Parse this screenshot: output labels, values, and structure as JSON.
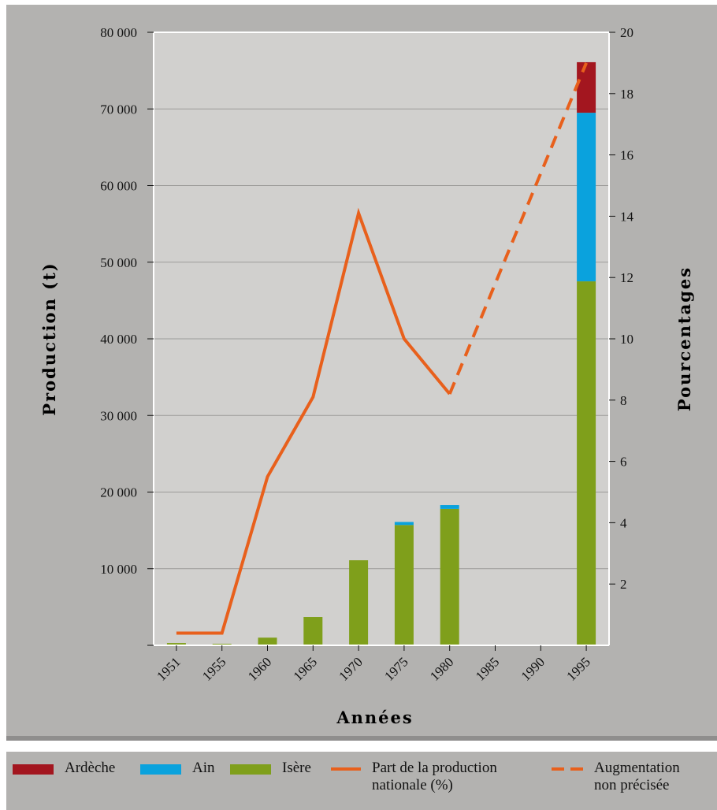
{
  "chart_data": {
    "type": "bar",
    "stacked": true,
    "xlabel": "Années",
    "ylabel": "Production (t)",
    "y2label": "Pourcentages",
    "ylim": [
      0,
      80000
    ],
    "y2lim": [
      0,
      20
    ],
    "yticks": [
      "10 000",
      "20 000",
      "30 000",
      "40 000",
      "50 000",
      "60 000",
      "70 000",
      "80 000"
    ],
    "y2ticks": [
      "2",
      "4",
      "6",
      "8",
      "10",
      "12",
      "14",
      "16",
      "18",
      "20"
    ],
    "categories": [
      "1951",
      "1955",
      "1960",
      "1965",
      "1970",
      "1975",
      "1980",
      "1985",
      "1990",
      "1995"
    ],
    "grid": true,
    "legend_position": "bottom",
    "series": [
      {
        "name": "Isère",
        "color": "#7f9f1b",
        "axis": "left",
        "values": [
          300,
          200,
          1000,
          3700,
          11100,
          15700,
          17800,
          0,
          0,
          47500
        ]
      },
      {
        "name": "Ain",
        "color": "#0aa2dd",
        "axis": "left",
        "values": [
          0,
          0,
          0,
          0,
          0,
          400,
          500,
          0,
          0,
          22000
        ]
      },
      {
        "name": "Ardèche",
        "color": "#a3161f",
        "axis": "left",
        "values": [
          0,
          0,
          0,
          0,
          0,
          0,
          0,
          0,
          0,
          6600
        ]
      }
    ],
    "lines": [
      {
        "name": "Part de la production nationale (%)",
        "color": "#e8601c",
        "style": "solid",
        "axis": "right",
        "x": [
          "1951",
          "1955",
          "1960",
          "1965",
          "1970",
          "1975",
          "1980"
        ],
        "values": [
          0.4,
          0.4,
          5.5,
          8.1,
          14.1,
          10.0,
          8.2
        ]
      },
      {
        "name": "Augmentation non précisée",
        "color": "#e8601c",
        "style": "dashed",
        "axis": "right",
        "x": [
          "1980",
          "1995"
        ],
        "values": [
          8.2,
          19.0
        ]
      }
    ]
  },
  "legend": {
    "ardeche": "Ardèche",
    "ain": "Ain",
    "isere": "Isère",
    "part_line1": "Part de la production",
    "part_line2": "nationale (%)",
    "augm_line1": "Augmentation",
    "augm_line2": "non précisée"
  }
}
